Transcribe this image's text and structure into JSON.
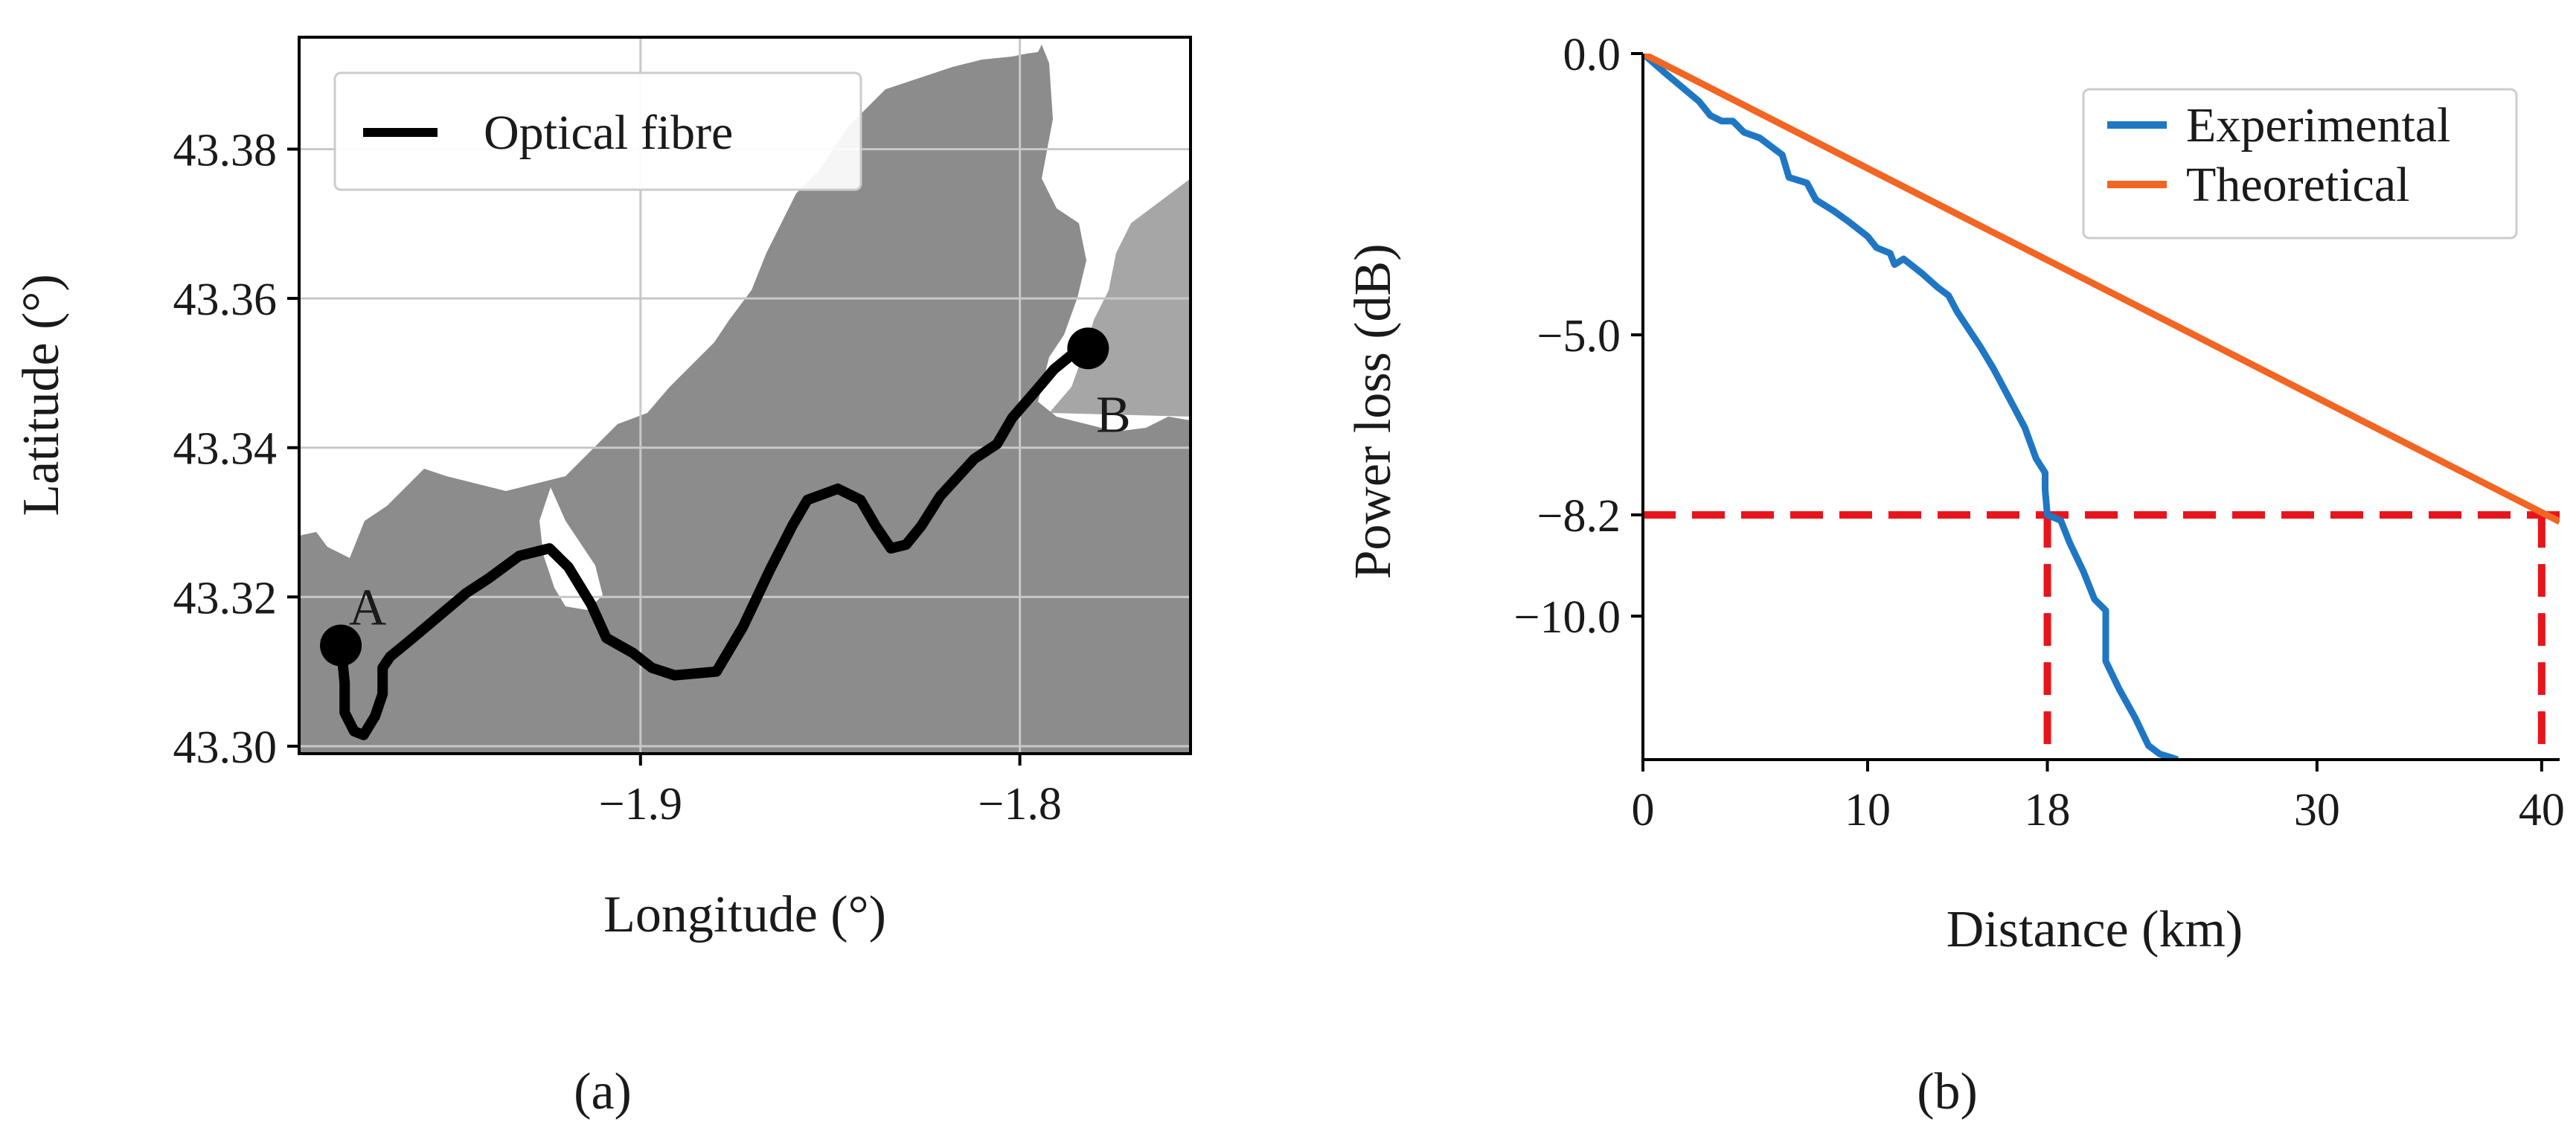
{
  "chart_data": [
    {
      "id": "a",
      "type": "map",
      "caption": "(a)",
      "xlabel": "Longitude (°)",
      "ylabel": "Latitude (°)",
      "xlim": [
        -1.99,
        -1.755
      ],
      "ylim": [
        43.299,
        43.395
      ],
      "xticks": [
        -1.9,
        -1.8
      ],
      "xtick_labels": [
        "−1.9",
        "−1.8"
      ],
      "yticks": [
        43.3,
        43.32,
        43.34,
        43.36,
        43.38
      ],
      "ytick_labels": [
        "43.30",
        "43.32",
        "43.34",
        "43.36",
        "43.38"
      ],
      "grid": true,
      "legend": {
        "position": "top-left",
        "entries": [
          {
            "label": "Optical fibre",
            "color": "#000000"
          }
        ]
      },
      "points": [
        {
          "label": "A",
          "lon": -1.979,
          "lat": 43.3135
        },
        {
          "label": "B",
          "lon": -1.782,
          "lat": 43.3533
        }
      ],
      "series": [
        {
          "name": "Optical fibre",
          "color": "#000000",
          "points": [
            [
              -1.979,
              43.3135
            ],
            [
              -1.978,
              43.3085
            ],
            [
              -1.978,
              43.3045
            ],
            [
              -1.9755,
              43.302
            ],
            [
              -1.973,
              43.3015
            ],
            [
              -1.97,
              43.304
            ],
            [
              -1.968,
              43.307
            ],
            [
              -1.968,
              43.3105
            ],
            [
              -1.966,
              43.312
            ],
            [
              -1.96,
              43.3145
            ],
            [
              -1.953,
              43.3175
            ],
            [
              -1.946,
              43.3205
            ],
            [
              -1.94,
              43.3225
            ],
            [
              -1.932,
              43.3255
            ],
            [
              -1.924,
              43.3265
            ],
            [
              -1.919,
              43.324
            ],
            [
              -1.913,
              43.319
            ],
            [
              -1.909,
              43.3145
            ],
            [
              -1.902,
              43.3125
            ],
            [
              -1.897,
              43.3105
            ],
            [
              -1.891,
              43.3095
            ],
            [
              -1.88,
              43.31
            ],
            [
              -1.873,
              43.316
            ],
            [
              -1.866,
              43.3235
            ],
            [
              -1.86,
              43.3295
            ],
            [
              -1.856,
              43.333
            ],
            [
              -1.848,
              43.3345
            ],
            [
              -1.842,
              43.333
            ],
            [
              -1.838,
              43.3295
            ],
            [
              -1.834,
              43.3265
            ],
            [
              -1.83,
              43.327
            ],
            [
              -1.826,
              43.3295
            ],
            [
              -1.821,
              43.3335
            ],
            [
              -1.812,
              43.3385
            ],
            [
              -1.806,
              43.3405
            ],
            [
              -1.802,
              43.344
            ],
            [
              -1.796,
              43.3475
            ],
            [
              -1.791,
              43.3505
            ],
            [
              -1.785,
              43.353
            ],
            [
              -1.782,
              43.3533
            ]
          ]
        }
      ],
      "colors": {
        "land": "#8c8c8c",
        "land_light": "#a6a6a6",
        "sea": "#ffffff",
        "grid": "#c8c8c8"
      }
    },
    {
      "id": "b",
      "type": "line",
      "caption": "(b)",
      "xlabel": "Distance (km)",
      "ylabel": "Power loss (dB)",
      "xlim": [
        0,
        40.8
      ],
      "ylim": [
        -12.55,
        0
      ],
      "xticks": [
        0,
        10,
        18,
        30,
        40
      ],
      "xtick_labels": [
        "0",
        "10",
        "18",
        "30",
        "40"
      ],
      "yticks": [
        0,
        -5,
        -8.2,
        -10
      ],
      "ytick_labels": [
        "0.0",
        "−5.0",
        "−8.2",
        "−10.0"
      ],
      "grid": false,
      "legend": {
        "position": "top-right",
        "entries": [
          {
            "label": "Experimental",
            "color": "#1f77c4"
          },
          {
            "label": "Theoretical",
            "color": "#f26522"
          }
        ]
      },
      "series": [
        {
          "name": "Experimental",
          "color": "#1f77c4",
          "points": [
            [
              0,
              0
            ],
            [
              1.0,
              -0.35
            ],
            [
              2.5,
              -0.85
            ],
            [
              3.0,
              -1.1
            ],
            [
              3.5,
              -1.2
            ],
            [
              4.0,
              -1.2
            ],
            [
              4.5,
              -1.4
            ],
            [
              5.2,
              -1.5
            ],
            [
              6.2,
              -1.8
            ],
            [
              6.5,
              -2.2
            ],
            [
              7.3,
              -2.3
            ],
            [
              7.7,
              -2.6
            ],
            [
              8.5,
              -2.8
            ],
            [
              9.2,
              -3.0
            ],
            [
              10.0,
              -3.25
            ],
            [
              10.4,
              -3.45
            ],
            [
              11.0,
              -3.55
            ],
            [
              11.2,
              -3.75
            ],
            [
              11.6,
              -3.65
            ],
            [
              12.4,
              -3.9
            ],
            [
              13.1,
              -4.15
            ],
            [
              13.6,
              -4.3
            ],
            [
              14.0,
              -4.6
            ],
            [
              14.5,
              -4.9
            ],
            [
              15.0,
              -5.2
            ],
            [
              15.6,
              -5.6
            ],
            [
              16.2,
              -6.05
            ],
            [
              16.6,
              -6.35
            ],
            [
              17.0,
              -6.65
            ],
            [
              17.5,
              -7.2
            ],
            [
              17.9,
              -7.45
            ],
            [
              17.9,
              -7.75
            ],
            [
              18.0,
              -8.2
            ],
            [
              18.6,
              -8.3
            ],
            [
              19.0,
              -8.7
            ],
            [
              19.6,
              -9.2
            ],
            [
              20.1,
              -9.7
            ],
            [
              20.6,
              -9.9
            ],
            [
              20.6,
              -10.8
            ],
            [
              21.2,
              -11.3
            ],
            [
              21.9,
              -11.8
            ],
            [
              22.5,
              -12.3
            ],
            [
              23.0,
              -12.45
            ],
            [
              23.8,
              -12.55
            ]
          ]
        },
        {
          "name": "Theoretical",
          "color": "#f26522",
          "points": [
            [
              0,
              0
            ],
            [
              40.8,
              -8.32
            ]
          ]
        }
      ],
      "reference_lines": {
        "color": "#e8141c",
        "segments": [
          [
            [
              0,
              -8.2
            ],
            [
              40.8,
              -8.2
            ]
          ],
          [
            [
              18,
              -8.2
            ],
            [
              18,
              -12.55
            ]
          ],
          [
            [
              40,
              -8.2
            ],
            [
              40,
              -12.55
            ]
          ]
        ]
      }
    }
  ]
}
